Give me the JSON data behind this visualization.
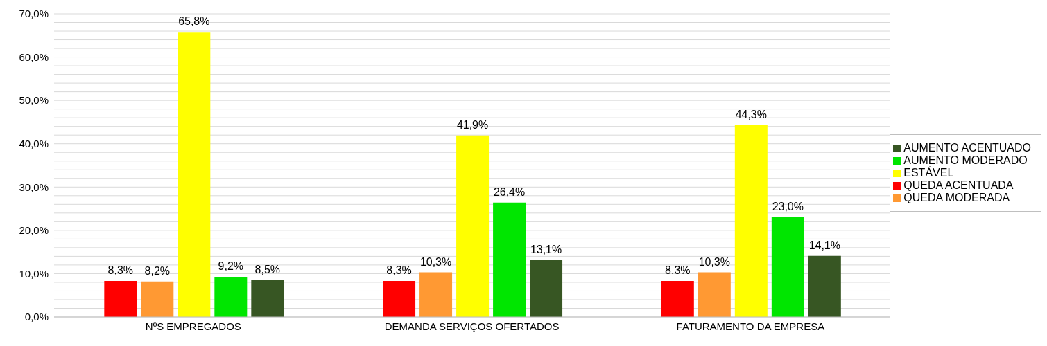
{
  "chart_data": {
    "type": "bar",
    "categories": [
      "NºS EMPREGADOS",
      "DEMANDA SERVIÇOS OFERTADOS",
      "FATURAMENTO DA EMPRESA"
    ],
    "series": [
      {
        "name": "QUEDA ACENTUADA",
        "color": "#ff0000",
        "values": [
          8.3,
          8.3,
          8.3
        ],
        "value_labels": [
          "8,3%",
          "8,3%",
          "8,3%"
        ]
      },
      {
        "name": "QUEDA MODERADA",
        "color": "#ff9933",
        "values": [
          8.2,
          10.3,
          10.3
        ],
        "value_labels": [
          "8,2%",
          "10,3%",
          "10,3%"
        ]
      },
      {
        "name": "ESTÁVEL",
        "color": "#ffff00",
        "values": [
          65.8,
          41.9,
          44.3
        ],
        "value_labels": [
          "65,8%",
          "41,9%",
          "44,3%"
        ]
      },
      {
        "name": "AUMENTO MODERADO",
        "color": "#00e600",
        "values": [
          9.2,
          26.4,
          23.0
        ],
        "value_labels": [
          "9,2%",
          "26,4%",
          "23,0%"
        ]
      },
      {
        "name": "AUMENTO ACENTUADO",
        "color": "#375623",
        "values": [
          8.5,
          13.1,
          14.1
        ],
        "value_labels": [
          "8,5%",
          "13,1%",
          "14,1%"
        ]
      }
    ],
    "ylim": [
      0,
      70
    ],
    "yticks": [
      {
        "value": 0,
        "label": "0,0%"
      },
      {
        "value": 2,
        "label": null
      },
      {
        "value": 4,
        "label": null
      },
      {
        "value": 6,
        "label": null
      },
      {
        "value": 8,
        "label": null
      },
      {
        "value": 10,
        "label": "10,0%"
      },
      {
        "value": 12,
        "label": null
      },
      {
        "value": 14,
        "label": null
      },
      {
        "value": 16,
        "label": null
      },
      {
        "value": 18,
        "label": null
      },
      {
        "value": 20,
        "label": "20,0%"
      },
      {
        "value": 22,
        "label": null
      },
      {
        "value": 24,
        "label": null
      },
      {
        "value": 26,
        "label": null
      },
      {
        "value": 28,
        "label": null
      },
      {
        "value": 30,
        "label": "30,0%"
      },
      {
        "value": 32,
        "label": null
      },
      {
        "value": 34,
        "label": null
      },
      {
        "value": 36,
        "label": null
      },
      {
        "value": 38,
        "label": null
      },
      {
        "value": 40,
        "label": "40,0%"
      },
      {
        "value": 42,
        "label": null
      },
      {
        "value": 44,
        "label": null
      },
      {
        "value": 46,
        "label": null
      },
      {
        "value": 48,
        "label": null
      },
      {
        "value": 50,
        "label": "50,0%"
      },
      {
        "value": 52,
        "label": null
      },
      {
        "value": 54,
        "label": null
      },
      {
        "value": 56,
        "label": null
      },
      {
        "value": 58,
        "label": null
      },
      {
        "value": 60,
        "label": "60,0%"
      },
      {
        "value": 62,
        "label": null
      },
      {
        "value": 64,
        "label": null
      },
      {
        "value": 66,
        "label": null
      },
      {
        "value": 68,
        "label": null
      },
      {
        "value": 70,
        "label": "70,0%"
      }
    ],
    "grid": "y",
    "legend": "right"
  }
}
